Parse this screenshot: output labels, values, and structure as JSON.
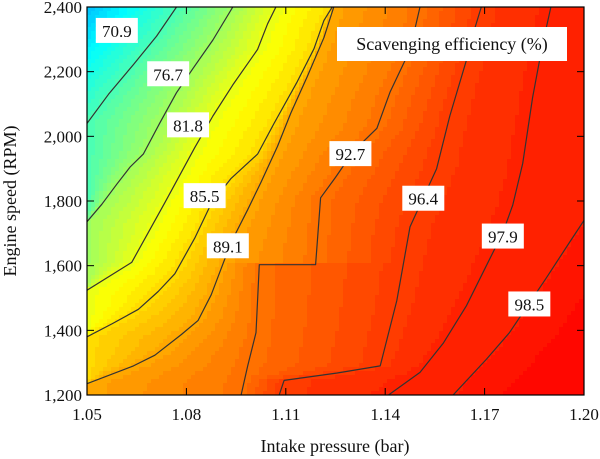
{
  "chart_data": {
    "type": "heatmap",
    "subtype": "filled-contour",
    "title": "Scavenging efficiency (%)",
    "xlabel": "Intake pressure (bar)",
    "ylabel": "Engine speed (RPM)",
    "xlim": [
      1.05,
      1.2
    ],
    "ylim": [
      1200,
      2400
    ],
    "x_ticks": [
      "1.05",
      "1.08",
      "1.11",
      "1.14",
      "1.17",
      "1.20"
    ],
    "y_ticks": [
      "1,200",
      "1,400",
      "1,600",
      "1,800",
      "2,000",
      "2,200",
      "2,400"
    ],
    "x_tick_values": [
      1.05,
      1.08,
      1.11,
      1.14,
      1.17,
      1.2
    ],
    "y_tick_values": [
      1200,
      1400,
      1600,
      1800,
      2000,
      2200,
      2400
    ],
    "colormap": "jet",
    "value_range": [
      67,
      100
    ],
    "grid": false,
    "legend": "title box top-right",
    "contours": [
      {
        "level": 70.9,
        "label": "70.9",
        "label_at": [
          1.059,
          2326
        ],
        "points": [
          [
            1.05,
            2040
          ],
          [
            1.0565,
            2130
          ],
          [
            1.064,
            2222
          ],
          [
            1.071,
            2310
          ],
          [
            1.077,
            2400
          ]
        ]
      },
      {
        "level": 76.7,
        "label": "76.7",
        "label_at": [
          1.0745,
          2192
        ],
        "points": [
          [
            1.05,
            1736
          ],
          [
            1.0545,
            1790
          ],
          [
            1.059,
            1852
          ],
          [
            1.063,
            1905
          ],
          [
            1.067,
            1945
          ],
          [
            1.072,
            2042
          ],
          [
            1.077,
            2135
          ],
          [
            1.082,
            2210
          ],
          [
            1.088,
            2298
          ],
          [
            1.094,
            2400
          ]
        ]
      },
      {
        "level": 81.8,
        "label": "81.8",
        "label_at": [
          1.0805,
          2034
        ],
        "points": [
          [
            1.05,
            1524
          ],
          [
            1.0635,
            1610
          ],
          [
            1.0735,
            1795
          ],
          [
            1.0825,
            1965
          ],
          [
            1.088,
            2063
          ],
          [
            1.094,
            2159
          ],
          [
            1.1015,
            2269
          ],
          [
            1.1045,
            2348
          ],
          [
            1.107,
            2400
          ]
        ]
      },
      {
        "level": 85.5,
        "label": "85.5",
        "label_at": [
          1.0855,
          1815
        ],
        "points": [
          [
            1.05,
            1380
          ],
          [
            1.0575,
            1420
          ],
          [
            1.0655,
            1465
          ],
          [
            1.0715,
            1520
          ],
          [
            1.0765,
            1575
          ],
          [
            1.0825,
            1685
          ],
          [
            1.0875,
            1792
          ],
          [
            1.0935,
            1870
          ],
          [
            1.1015,
            1945
          ],
          [
            1.1065,
            2041
          ],
          [
            1.1135,
            2170
          ],
          [
            1.1185,
            2271
          ],
          [
            1.1215,
            2358
          ],
          [
            1.124,
            2400
          ]
        ]
      },
      {
        "level": 89.1,
        "label": "89.1",
        "label_at": [
          1.0925,
          1660
        ],
        "points": [
          [
            1.05,
            1235
          ],
          [
            1.064,
            1290
          ],
          [
            1.0705,
            1323
          ],
          [
            1.0785,
            1387
          ],
          [
            1.0835,
            1430
          ],
          [
            1.0875,
            1510
          ],
          [
            1.0935,
            1672
          ],
          [
            1.0985,
            1773
          ],
          [
            1.1025,
            1858
          ],
          [
            1.1075,
            1969
          ],
          [
            1.1115,
            2072
          ],
          [
            1.1165,
            2185
          ],
          [
            1.1215,
            2305
          ],
          [
            1.1245,
            2400
          ]
        ]
      },
      {
        "level": 92.7,
        "label": "92.7",
        "label_at": [
          1.1295,
          1945
        ],
        "points": [
          [
            1.0965,
            1200
          ],
          [
            1.0985,
            1290
          ],
          [
            1.101,
            1393
          ],
          [
            1.102,
            1603
          ],
          [
            1.1115,
            1603
          ],
          [
            1.119,
            1603
          ],
          [
            1.1205,
            1810
          ],
          [
            1.125,
            1873
          ],
          [
            1.1305,
            1955
          ],
          [
            1.1375,
            2025
          ],
          [
            1.1415,
            2138
          ],
          [
            1.1475,
            2267
          ],
          [
            1.1505,
            2400
          ]
        ]
      },
      {
        "level": 96.4,
        "label": "96.4",
        "label_at": [
          1.1515,
          1807
        ],
        "points": [
          [
            1.108,
            1200
          ],
          [
            1.1095,
            1245
          ],
          [
            1.1255,
            1268
          ],
          [
            1.1385,
            1290
          ],
          [
            1.1435,
            1492
          ],
          [
            1.1475,
            1720
          ],
          [
            1.1515,
            1810
          ],
          [
            1.1555,
            1900
          ],
          [
            1.1595,
            2063
          ],
          [
            1.1645,
            2235
          ],
          [
            1.1665,
            2316
          ],
          [
            1.169,
            2400
          ]
        ]
      },
      {
        "level": 97.9,
        "label": "97.9",
        "label_at": [
          1.1755,
          1690
        ],
        "points": [
          [
            1.141,
            1200
          ],
          [
            1.1505,
            1270
          ],
          [
            1.1575,
            1360
          ],
          [
            1.1645,
            1476
          ],
          [
            1.1715,
            1620
          ],
          [
            1.1755,
            1702
          ],
          [
            1.1785,
            1788
          ],
          [
            1.1815,
            1916
          ],
          [
            1.1845,
            2120
          ],
          [
            1.1875,
            2285
          ],
          [
            1.19,
            2400
          ]
        ]
      },
      {
        "level": 98.5,
        "label": "98.5",
        "label_at": [
          1.1835,
          1480
        ],
        "points": [
          [
            1.1605,
            1200
          ],
          [
            1.1705,
            1310
          ],
          [
            1.1775,
            1393
          ],
          [
            1.1835,
            1484
          ],
          [
            1.1885,
            1560
          ],
          [
            1.1955,
            1670
          ],
          [
            1.2,
            1740
          ]
        ]
      }
    ]
  }
}
